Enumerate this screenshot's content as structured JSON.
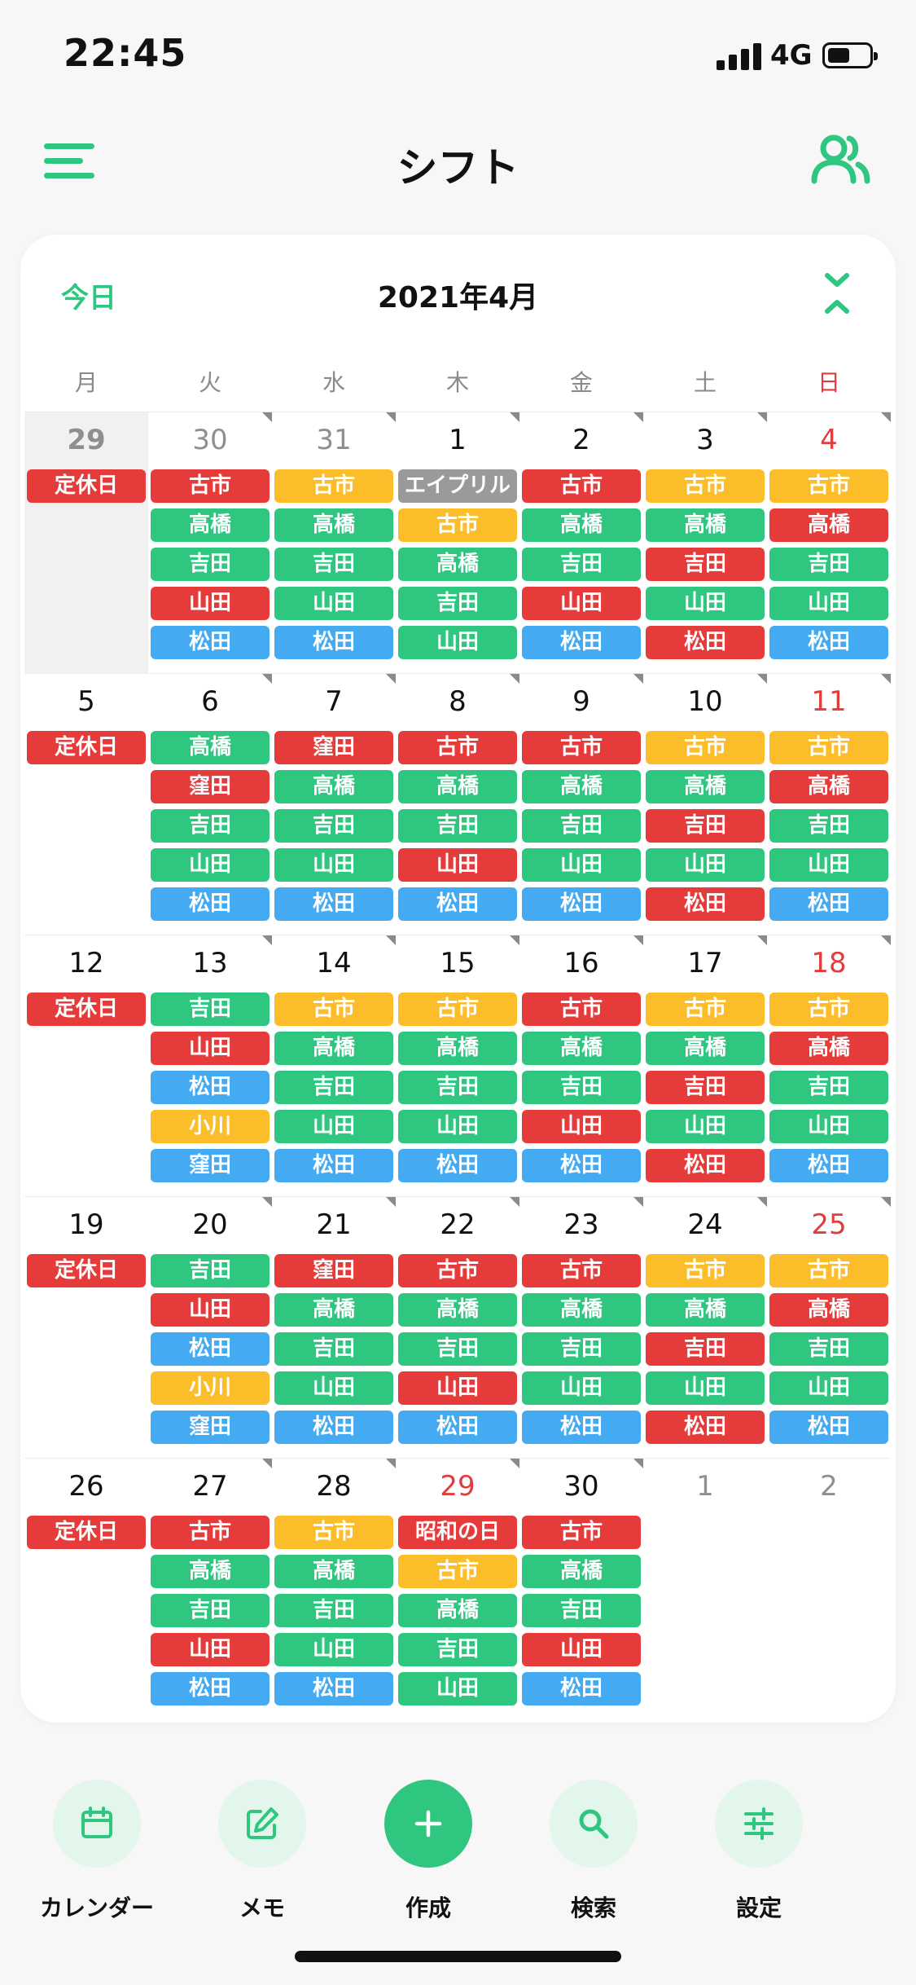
{
  "status_bar": {
    "time": "22:45",
    "network": "4G",
    "battery_icon": "battery-icon",
    "signal_icon": "signal-icon"
  },
  "header": {
    "title": "シフト",
    "menu_icon": "menu-icon",
    "users_icon": "users-icon"
  },
  "calendar": {
    "today_label": "今日",
    "month_title": "2021年4月",
    "collapse_icon": "collapse-icon",
    "weekdays": [
      "月",
      "火",
      "水",
      "木",
      "金",
      "土",
      "日"
    ],
    "colors": {
      "red": "#e63b3b",
      "yellow": "#fbbd2a",
      "green": "#2fc780",
      "blue": "#44aaf1",
      "gray": "#9a9a9a"
    },
    "weeks": [
      [
        {
          "date": "29",
          "state": "today",
          "shifts": [
            [
              "定休日",
              "red"
            ]
          ]
        },
        {
          "date": "30",
          "state": "dim",
          "corner": true,
          "shifts": [
            [
              "古市",
              "red"
            ],
            [
              "高橋",
              "green"
            ],
            [
              "吉田",
              "green"
            ],
            [
              "山田",
              "red"
            ],
            [
              "松田",
              "blue"
            ]
          ]
        },
        {
          "date": "31",
          "state": "dim",
          "corner": true,
          "shifts": [
            [
              "古市",
              "yellow"
            ],
            [
              "高橋",
              "green"
            ],
            [
              "吉田",
              "green"
            ],
            [
              "山田",
              "green"
            ],
            [
              "松田",
              "blue"
            ]
          ]
        },
        {
          "date": "1",
          "corner": true,
          "shifts": [
            [
              "エイプリル",
              "gray"
            ],
            [
              "古市",
              "yellow"
            ],
            [
              "高橋",
              "green"
            ],
            [
              "吉田",
              "green"
            ],
            [
              "山田",
              "green"
            ]
          ]
        },
        {
          "date": "2",
          "corner": true,
          "shifts": [
            [
              "古市",
              "red"
            ],
            [
              "高橋",
              "green"
            ],
            [
              "吉田",
              "green"
            ],
            [
              "山田",
              "red"
            ],
            [
              "松田",
              "blue"
            ]
          ]
        },
        {
          "date": "3",
          "corner": true,
          "shifts": [
            [
              "古市",
              "yellow"
            ],
            [
              "高橋",
              "green"
            ],
            [
              "吉田",
              "red"
            ],
            [
              "山田",
              "green"
            ],
            [
              "松田",
              "red"
            ]
          ]
        },
        {
          "date": "4",
          "state": "sun",
          "corner": true,
          "shifts": [
            [
              "古市",
              "yellow"
            ],
            [
              "高橋",
              "red"
            ],
            [
              "吉田",
              "green"
            ],
            [
              "山田",
              "green"
            ],
            [
              "松田",
              "blue"
            ]
          ]
        }
      ],
      [
        {
          "date": "5",
          "shifts": [
            [
              "定休日",
              "red"
            ]
          ]
        },
        {
          "date": "6",
          "corner": true,
          "shifts": [
            [
              "高橋",
              "green"
            ],
            [
              "窪田",
              "red"
            ],
            [
              "吉田",
              "green"
            ],
            [
              "山田",
              "green"
            ],
            [
              "松田",
              "blue"
            ]
          ]
        },
        {
          "date": "7",
          "corner": true,
          "shifts": [
            [
              "窪田",
              "red"
            ],
            [
              "高橋",
              "green"
            ],
            [
              "吉田",
              "green"
            ],
            [
              "山田",
              "green"
            ],
            [
              "松田",
              "blue"
            ]
          ]
        },
        {
          "date": "8",
          "corner": true,
          "shifts": [
            [
              "古市",
              "red"
            ],
            [
              "高橋",
              "green"
            ],
            [
              "吉田",
              "green"
            ],
            [
              "山田",
              "red"
            ],
            [
              "松田",
              "blue"
            ]
          ]
        },
        {
          "date": "9",
          "corner": true,
          "shifts": [
            [
              "古市",
              "red"
            ],
            [
              "高橋",
              "green"
            ],
            [
              "吉田",
              "green"
            ],
            [
              "山田",
              "green"
            ],
            [
              "松田",
              "blue"
            ]
          ]
        },
        {
          "date": "10",
          "corner": true,
          "shifts": [
            [
              "古市",
              "yellow"
            ],
            [
              "高橋",
              "green"
            ],
            [
              "吉田",
              "red"
            ],
            [
              "山田",
              "green"
            ],
            [
              "松田",
              "red"
            ]
          ]
        },
        {
          "date": "11",
          "state": "sun",
          "corner": true,
          "shifts": [
            [
              "古市",
              "yellow"
            ],
            [
              "高橋",
              "red"
            ],
            [
              "吉田",
              "green"
            ],
            [
              "山田",
              "green"
            ],
            [
              "松田",
              "blue"
            ]
          ]
        }
      ],
      [
        {
          "date": "12",
          "shifts": [
            [
              "定休日",
              "red"
            ]
          ]
        },
        {
          "date": "13",
          "corner": true,
          "shifts": [
            [
              "吉田",
              "green"
            ],
            [
              "山田",
              "red"
            ],
            [
              "松田",
              "blue"
            ],
            [
              "小川",
              "yellow"
            ],
            [
              "窪田",
              "blue"
            ]
          ]
        },
        {
          "date": "14",
          "corner": true,
          "shifts": [
            [
              "古市",
              "yellow"
            ],
            [
              "高橋",
              "green"
            ],
            [
              "吉田",
              "green"
            ],
            [
              "山田",
              "green"
            ],
            [
              "松田",
              "blue"
            ]
          ]
        },
        {
          "date": "15",
          "corner": true,
          "shifts": [
            [
              "古市",
              "yellow"
            ],
            [
              "高橋",
              "green"
            ],
            [
              "吉田",
              "green"
            ],
            [
              "山田",
              "green"
            ],
            [
              "松田",
              "blue"
            ]
          ]
        },
        {
          "date": "16",
          "corner": true,
          "shifts": [
            [
              "古市",
              "red"
            ],
            [
              "高橋",
              "green"
            ],
            [
              "吉田",
              "green"
            ],
            [
              "山田",
              "red"
            ],
            [
              "松田",
              "blue"
            ]
          ]
        },
        {
          "date": "17",
          "corner": true,
          "shifts": [
            [
              "古市",
              "yellow"
            ],
            [
              "高橋",
              "green"
            ],
            [
              "吉田",
              "red"
            ],
            [
              "山田",
              "green"
            ],
            [
              "松田",
              "red"
            ]
          ]
        },
        {
          "date": "18",
          "state": "sun",
          "corner": true,
          "shifts": [
            [
              "古市",
              "yellow"
            ],
            [
              "高橋",
              "red"
            ],
            [
              "吉田",
              "green"
            ],
            [
              "山田",
              "green"
            ],
            [
              "松田",
              "blue"
            ]
          ]
        }
      ],
      [
        {
          "date": "19",
          "shifts": [
            [
              "定休日",
              "red"
            ]
          ]
        },
        {
          "date": "20",
          "corner": true,
          "shifts": [
            [
              "吉田",
              "green"
            ],
            [
              "山田",
              "red"
            ],
            [
              "松田",
              "blue"
            ],
            [
              "小川",
              "yellow"
            ],
            [
              "窪田",
              "blue"
            ]
          ]
        },
        {
          "date": "21",
          "corner": true,
          "shifts": [
            [
              "窪田",
              "red"
            ],
            [
              "高橋",
              "green"
            ],
            [
              "吉田",
              "green"
            ],
            [
              "山田",
              "green"
            ],
            [
              "松田",
              "blue"
            ]
          ]
        },
        {
          "date": "22",
          "corner": true,
          "shifts": [
            [
              "古市",
              "red"
            ],
            [
              "高橋",
              "green"
            ],
            [
              "吉田",
              "green"
            ],
            [
              "山田",
              "red"
            ],
            [
              "松田",
              "blue"
            ]
          ]
        },
        {
          "date": "23",
          "corner": true,
          "shifts": [
            [
              "古市",
              "red"
            ],
            [
              "高橋",
              "green"
            ],
            [
              "吉田",
              "green"
            ],
            [
              "山田",
              "green"
            ],
            [
              "松田",
              "blue"
            ]
          ]
        },
        {
          "date": "24",
          "corner": true,
          "shifts": [
            [
              "古市",
              "yellow"
            ],
            [
              "高橋",
              "green"
            ],
            [
              "吉田",
              "red"
            ],
            [
              "山田",
              "green"
            ],
            [
              "松田",
              "red"
            ]
          ]
        },
        {
          "date": "25",
          "state": "sun",
          "corner": true,
          "shifts": [
            [
              "古市",
              "yellow"
            ],
            [
              "高橋",
              "red"
            ],
            [
              "吉田",
              "green"
            ],
            [
              "山田",
              "green"
            ],
            [
              "松田",
              "blue"
            ]
          ]
        }
      ],
      [
        {
          "date": "26",
          "shifts": [
            [
              "定休日",
              "red"
            ]
          ]
        },
        {
          "date": "27",
          "corner": true,
          "shifts": [
            [
              "古市",
              "red"
            ],
            [
              "高橋",
              "green"
            ],
            [
              "吉田",
              "green"
            ],
            [
              "山田",
              "red"
            ],
            [
              "松田",
              "blue"
            ]
          ]
        },
        {
          "date": "28",
          "corner": true,
          "shifts": [
            [
              "古市",
              "yellow"
            ],
            [
              "高橋",
              "green"
            ],
            [
              "吉田",
              "green"
            ],
            [
              "山田",
              "green"
            ],
            [
              "松田",
              "blue"
            ]
          ]
        },
        {
          "date": "29",
          "state": "sun",
          "corner": true,
          "shifts": [
            [
              "昭和の日",
              "red"
            ],
            [
              "古市",
              "yellow"
            ],
            [
              "高橋",
              "green"
            ],
            [
              "吉田",
              "green"
            ],
            [
              "山田",
              "green"
            ]
          ]
        },
        {
          "date": "30",
          "corner": true,
          "shifts": [
            [
              "古市",
              "red"
            ],
            [
              "高橋",
              "green"
            ],
            [
              "吉田",
              "green"
            ],
            [
              "山田",
              "red"
            ],
            [
              "松田",
              "blue"
            ]
          ]
        },
        {
          "date": "1",
          "state": "dim",
          "shifts": []
        },
        {
          "date": "2",
          "state": "dim",
          "shifts": []
        }
      ]
    ]
  },
  "bottom_nav": [
    {
      "key": "calendar",
      "label": "カレンダー",
      "icon": "calendar-icon"
    },
    {
      "key": "memo",
      "label": "メモ",
      "icon": "edit-icon"
    },
    {
      "key": "create",
      "label": "作成",
      "icon": "plus-icon"
    },
    {
      "key": "search",
      "label": "検索",
      "icon": "search-icon"
    },
    {
      "key": "settings",
      "label": "設定",
      "icon": "sliders-icon"
    }
  ]
}
